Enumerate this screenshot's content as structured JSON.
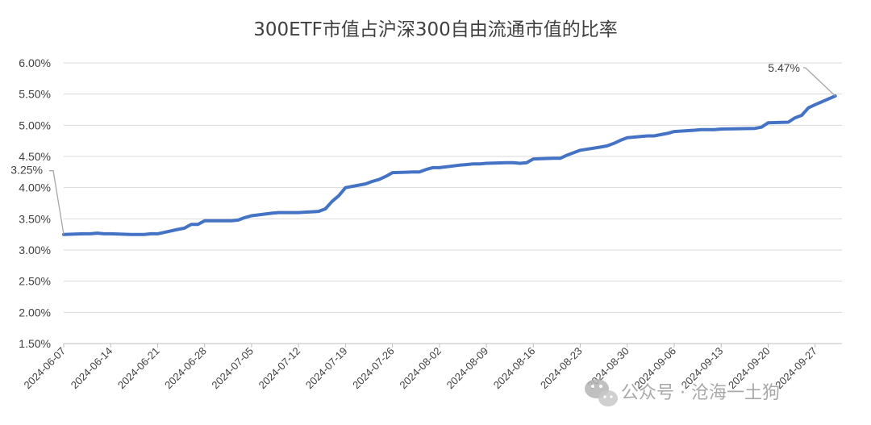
{
  "chart_data": {
    "type": "line",
    "title": "300ETF市值占沪深300自由流通市值的比率",
    "xlabel": "",
    "ylabel": "",
    "ylim": [
      0.015,
      0.06
    ],
    "yticks": [
      0.015,
      0.02,
      0.025,
      0.03,
      0.035,
      0.04,
      0.045,
      0.05,
      0.055,
      0.06
    ],
    "ytick_labels": [
      "1.50%",
      "2.00%",
      "2.50%",
      "3.00%",
      "3.50%",
      "4.00%",
      "4.50%",
      "5.00%",
      "5.50%",
      "6.00%"
    ],
    "xlim": [
      "2024-06-07",
      "2024-10-01"
    ],
    "xticks": [
      "2024-06-07",
      "2024-06-14",
      "2024-06-21",
      "2024-06-28",
      "2024-07-05",
      "2024-07-12",
      "2024-07-19",
      "2024-07-26",
      "2024-08-02",
      "2024-08-09",
      "2024-08-16",
      "2024-08-23",
      "2024-08-30",
      "2024-09-06",
      "2024-09-13",
      "2024-09-20",
      "2024-09-27"
    ],
    "grid": true,
    "legend": "none",
    "series": [
      {
        "color": "#4472c4",
        "points": [
          [
            "2024-06-07",
            0.0325
          ],
          [
            "2024-06-10",
            0.0326
          ],
          [
            "2024-06-11",
            0.0326
          ],
          [
            "2024-06-12",
            0.0327
          ],
          [
            "2024-06-13",
            0.0326
          ],
          [
            "2024-06-14",
            0.0326
          ],
          [
            "2024-06-17",
            0.0325
          ],
          [
            "2024-06-18",
            0.0325
          ],
          [
            "2024-06-19",
            0.0325
          ],
          [
            "2024-06-20",
            0.0326
          ],
          [
            "2024-06-21",
            0.0326
          ],
          [
            "2024-06-24",
            0.0333
          ],
          [
            "2024-06-25",
            0.0335
          ],
          [
            "2024-06-26",
            0.0341
          ],
          [
            "2024-06-27",
            0.0341
          ],
          [
            "2024-06-28",
            0.0347
          ],
          [
            "2024-07-01",
            0.0347
          ],
          [
            "2024-07-02",
            0.0347
          ],
          [
            "2024-07-03",
            0.0348
          ],
          [
            "2024-07-04",
            0.0352
          ],
          [
            "2024-07-05",
            0.0355
          ],
          [
            "2024-07-08",
            0.0359
          ],
          [
            "2024-07-09",
            0.036
          ],
          [
            "2024-07-10",
            0.036
          ],
          [
            "2024-07-11",
            0.036
          ],
          [
            "2024-07-12",
            0.036
          ],
          [
            "2024-07-15",
            0.0362
          ],
          [
            "2024-07-16",
            0.0366
          ],
          [
            "2024-07-17",
            0.0378
          ],
          [
            "2024-07-18",
            0.0387
          ],
          [
            "2024-07-19",
            0.04
          ],
          [
            "2024-07-22",
            0.0406
          ],
          [
            "2024-07-23",
            0.041
          ],
          [
            "2024-07-24",
            0.0413
          ],
          [
            "2024-07-25",
            0.0418
          ],
          [
            "2024-07-26",
            0.0424
          ],
          [
            "2024-07-29",
            0.0425
          ],
          [
            "2024-07-30",
            0.0425
          ],
          [
            "2024-07-31",
            0.0429
          ],
          [
            "2024-08-01",
            0.0432
          ],
          [
            "2024-08-02",
            0.0432
          ],
          [
            "2024-08-05",
            0.0436
          ],
          [
            "2024-08-06",
            0.0437
          ],
          [
            "2024-08-07",
            0.0438
          ],
          [
            "2024-08-08",
            0.0438
          ],
          [
            "2024-08-09",
            0.0439
          ],
          [
            "2024-08-12",
            0.044
          ],
          [
            "2024-08-13",
            0.044
          ],
          [
            "2024-08-14",
            0.0439
          ],
          [
            "2024-08-15",
            0.044
          ],
          [
            "2024-08-16",
            0.0446
          ],
          [
            "2024-08-19",
            0.0447
          ],
          [
            "2024-08-20",
            0.0447
          ],
          [
            "2024-08-21",
            0.0452
          ],
          [
            "2024-08-22",
            0.0456
          ],
          [
            "2024-08-23",
            0.046
          ],
          [
            "2024-08-26",
            0.0465
          ],
          [
            "2024-08-27",
            0.0467
          ],
          [
            "2024-08-28",
            0.0471
          ],
          [
            "2024-08-29",
            0.0476
          ],
          [
            "2024-08-30",
            0.048
          ],
          [
            "2024-09-02",
            0.0483
          ],
          [
            "2024-09-03",
            0.0483
          ],
          [
            "2024-09-04",
            0.0485
          ],
          [
            "2024-09-05",
            0.0487
          ],
          [
            "2024-09-06",
            0.049
          ],
          [
            "2024-09-09",
            0.0492
          ],
          [
            "2024-09-10",
            0.0493
          ],
          [
            "2024-09-11",
            0.0493
          ],
          [
            "2024-09-12",
            0.0493
          ],
          [
            "2024-09-13",
            0.0494
          ],
          [
            "2024-09-18",
            0.0495
          ],
          [
            "2024-09-19",
            0.0497
          ],
          [
            "2024-09-20",
            0.0504
          ],
          [
            "2024-09-23",
            0.0505
          ],
          [
            "2024-09-24",
            0.0512
          ],
          [
            "2024-09-25",
            0.0516
          ],
          [
            "2024-09-26",
            0.0528
          ],
          [
            "2024-09-27",
            0.0533
          ],
          [
            "2024-09-30",
            0.0547
          ]
        ]
      }
    ],
    "annotations": [
      {
        "text": "3.25%",
        "x": "2024-06-07",
        "y": 0.0325
      },
      {
        "text": "5.47%",
        "x": "2024-09-30",
        "y": 0.0547
      }
    ]
  },
  "watermark": {
    "icon": "wechat-icon",
    "text": "公众号 · 沧海一土狗"
  }
}
